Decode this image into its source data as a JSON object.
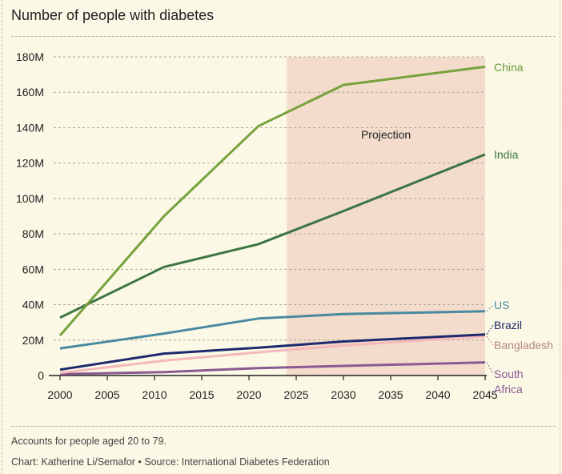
{
  "title": "Number of people with diabetes",
  "footnote": "Accounts for people aged 20 to 79.",
  "credit": "Chart: Katherine Li/Semafor • Source: International Diabetes Federation",
  "chart_data": {
    "type": "line",
    "title": "Number of people with diabetes",
    "xlabel": "",
    "ylabel": "",
    "xlim": [
      2000,
      2045
    ],
    "ylim": [
      0,
      180
    ],
    "x_ticks": [
      2000,
      2005,
      2010,
      2015,
      2020,
      2025,
      2030,
      2035,
      2040,
      2045
    ],
    "y_ticks": [
      0,
      20,
      40,
      60,
      80,
      100,
      120,
      140,
      160,
      180
    ],
    "y_tick_labels": [
      "0",
      "20M",
      "40M",
      "60M",
      "80M",
      "100M",
      "120M",
      "140M",
      "160M",
      "180M"
    ],
    "grid": true,
    "projection": {
      "label": "Projection",
      "from": 2024,
      "to": 2045,
      "color": "#f3dccb"
    },
    "x": [
      2000,
      2011,
      2021,
      2030,
      2045
    ],
    "series": [
      {
        "name": "China",
        "label": "China",
        "color": "#76a33d",
        "label_color": "#6a9a38",
        "values": [
          22.6,
          90.0,
          140.9,
          164.1,
          174.4
        ]
      },
      {
        "name": "India",
        "label": "India",
        "color": "#3c7543",
        "label_color": "#3c7543",
        "values": [
          32.7,
          61.3,
          74.2,
          92.9,
          124.9
        ]
      },
      {
        "name": "US",
        "label": "US",
        "color": "#4a8aa0",
        "label_color": "#4a8aa0",
        "values": [
          15.3,
          23.7,
          32.2,
          34.7,
          36.3
        ]
      },
      {
        "name": "Brazil",
        "label": "Brazil",
        "color": "#1f2a6e",
        "label_color": "#1f2a6e",
        "values": [
          3.3,
          12.4,
          15.7,
          19.2,
          23.2
        ]
      },
      {
        "name": "Bangladesh",
        "label": "Bangladesh",
        "color": "#f5b8bb",
        "label_color": "#b88480",
        "values": [
          1.5,
          8.4,
          13.1,
          17.0,
          22.2
        ]
      },
      {
        "name": "South Africa",
        "label": "South Africa",
        "color": "#8a5a93",
        "label_color": "#8a5a93",
        "values": [
          0.8,
          1.9,
          4.2,
          5.4,
          7.4
        ]
      }
    ]
  }
}
